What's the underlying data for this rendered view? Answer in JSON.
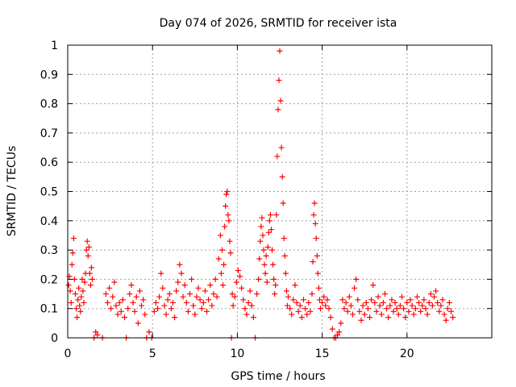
{
  "chart_data": {
    "type": "scatter",
    "title": "Day 074 of 2026, SRMTID for receiver ista",
    "xlabel": "GPS time / hours",
    "ylabel": "SRMTID / TECUs",
    "xlim": [
      0,
      25
    ],
    "ylim": [
      0,
      1
    ],
    "x_ticks": [
      0,
      5,
      10,
      15,
      20
    ],
    "x_tick_labels": [
      "0",
      "5",
      "10",
      "15",
      "20"
    ],
    "y_ticks": [
      0,
      0.1,
      0.2,
      0.3,
      0.4,
      0.5,
      0.6,
      0.7,
      0.8,
      0.9,
      1
    ],
    "y_tick_labels": [
      "0",
      "0.1",
      "0.2",
      "0.3",
      "0.4",
      "0.5",
      "0.6",
      "0.7",
      "0.8",
      "0.9",
      "1"
    ],
    "grid": true,
    "marker": "+",
    "series": [
      {
        "name": "SRMTID",
        "color": "#ff0000",
        "points": [
          [
            0.05,
            0.18
          ],
          [
            0.1,
            0.21
          ],
          [
            0.15,
            0.16
          ],
          [
            0.2,
            0.12
          ],
          [
            0.25,
            0.25
          ],
          [
            0.3,
            0.29
          ],
          [
            0.35,
            0.34
          ],
          [
            0.4,
            0.2
          ],
          [
            0.45,
            0.15
          ],
          [
            0.5,
            0.1
          ],
          [
            0.55,
            0.07
          ],
          [
            0.6,
            0.13
          ],
          [
            0.65,
            0.17
          ],
          [
            0.7,
            0.11
          ],
          [
            0.75,
            0.09
          ],
          [
            0.8,
            0.14
          ],
          [
            0.85,
            0.2
          ],
          [
            0.9,
            0.16
          ],
          [
            0.95,
            0.12
          ],
          [
            1.0,
            0.19
          ],
          [
            1.05,
            0.22
          ],
          [
            1.1,
            0.3
          ],
          [
            1.15,
            0.33
          ],
          [
            1.2,
            0.28
          ],
          [
            1.25,
            0.31
          ],
          [
            1.3,
            0.22
          ],
          [
            1.35,
            0.18
          ],
          [
            1.4,
            0.24
          ],
          [
            1.45,
            0.2
          ],
          [
            1.55,
            0.0
          ],
          [
            1.65,
            0.02
          ],
          [
            1.75,
            0.01
          ],
          [
            2.05,
            0.0
          ],
          [
            2.25,
            0.15
          ],
          [
            2.35,
            0.12
          ],
          [
            2.45,
            0.17
          ],
          [
            2.55,
            0.1
          ],
          [
            2.65,
            0.14
          ],
          [
            2.75,
            0.19
          ],
          [
            2.85,
            0.11
          ],
          [
            2.95,
            0.08
          ],
          [
            3.05,
            0.12
          ],
          [
            3.15,
            0.09
          ],
          [
            3.25,
            0.13
          ],
          [
            3.35,
            0.07
          ],
          [
            3.45,
            0.0
          ],
          [
            3.55,
            0.1
          ],
          [
            3.65,
            0.15
          ],
          [
            3.75,
            0.18
          ],
          [
            3.85,
            0.12
          ],
          [
            3.95,
            0.09
          ],
          [
            4.05,
            0.14
          ],
          [
            4.15,
            0.05
          ],
          [
            4.25,
            0.16
          ],
          [
            4.35,
            0.11
          ],
          [
            4.45,
            0.13
          ],
          [
            4.55,
            0.08
          ],
          [
            4.65,
            0.0
          ],
          [
            4.8,
            0.02
          ],
          [
            4.95,
            0.0
          ],
          [
            5.1,
            0.09
          ],
          [
            5.2,
            0.12
          ],
          [
            5.3,
            0.1
          ],
          [
            5.4,
            0.14
          ],
          [
            5.5,
            0.22
          ],
          [
            5.6,
            0.17
          ],
          [
            5.7,
            0.11
          ],
          [
            5.8,
            0.08
          ],
          [
            5.9,
            0.13
          ],
          [
            6.0,
            0.15
          ],
          [
            6.1,
            0.1
          ],
          [
            6.2,
            0.12
          ],
          [
            6.3,
            0.07
          ],
          [
            6.4,
            0.16
          ],
          [
            6.5,
            0.19
          ],
          [
            6.6,
            0.25
          ],
          [
            6.7,
            0.22
          ],
          [
            6.8,
            0.14
          ],
          [
            6.9,
            0.18
          ],
          [
            7.0,
            0.12
          ],
          [
            7.1,
            0.09
          ],
          [
            7.2,
            0.15
          ],
          [
            7.3,
            0.2
          ],
          [
            7.4,
            0.11
          ],
          [
            7.5,
            0.08
          ],
          [
            7.6,
            0.14
          ],
          [
            7.7,
            0.17
          ],
          [
            7.8,
            0.13
          ],
          [
            7.9,
            0.1
          ],
          [
            8.0,
            0.12
          ],
          [
            8.1,
            0.16
          ],
          [
            8.2,
            0.09
          ],
          [
            8.3,
            0.13
          ],
          [
            8.4,
            0.18
          ],
          [
            8.5,
            0.11
          ],
          [
            8.6,
            0.15
          ],
          [
            8.7,
            0.2
          ],
          [
            8.8,
            0.14
          ],
          [
            8.9,
            0.27
          ],
          [
            9.0,
            0.35
          ],
          [
            9.05,
            0.22
          ],
          [
            9.1,
            0.3
          ],
          [
            9.15,
            0.18
          ],
          [
            9.2,
            0.25
          ],
          [
            9.25,
            0.38
          ],
          [
            9.3,
            0.45
          ],
          [
            9.35,
            0.49
          ],
          [
            9.4,
            0.5
          ],
          [
            9.45,
            0.42
          ],
          [
            9.5,
            0.4
          ],
          [
            9.55,
            0.33
          ],
          [
            9.6,
            0.29
          ],
          [
            9.65,
            0.0
          ],
          [
            9.7,
            0.15
          ],
          [
            9.75,
            0.11
          ],
          [
            9.85,
            0.14
          ],
          [
            9.95,
            0.19
          ],
          [
            10.05,
            0.23
          ],
          [
            10.15,
            0.21
          ],
          [
            10.25,
            0.17
          ],
          [
            10.35,
            0.13
          ],
          [
            10.45,
            0.1
          ],
          [
            10.55,
            0.08
          ],
          [
            10.65,
            0.12
          ],
          [
            10.75,
            0.16
          ],
          [
            10.85,
            0.11
          ],
          [
            10.95,
            0.07
          ],
          [
            11.05,
            0.0
          ],
          [
            11.15,
            0.15
          ],
          [
            11.25,
            0.2
          ],
          [
            11.3,
            0.27
          ],
          [
            11.35,
            0.33
          ],
          [
            11.4,
            0.38
          ],
          [
            11.45,
            0.41
          ],
          [
            11.5,
            0.35
          ],
          [
            11.55,
            0.3
          ],
          [
            11.6,
            0.25
          ],
          [
            11.65,
            0.22
          ],
          [
            11.7,
            0.28
          ],
          [
            11.75,
            0.19
          ],
          [
            11.8,
            0.31
          ],
          [
            11.85,
            0.36
          ],
          [
            11.9,
            0.4
          ],
          [
            11.95,
            0.42
          ],
          [
            12.0,
            0.37
          ],
          [
            12.05,
            0.3
          ],
          [
            12.1,
            0.25
          ],
          [
            12.15,
            0.2
          ],
          [
            12.2,
            0.15
          ],
          [
            12.25,
            0.18
          ],
          [
            12.3,
            0.42
          ],
          [
            12.35,
            0.62
          ],
          [
            12.4,
            0.78
          ],
          [
            12.45,
            0.88
          ],
          [
            12.5,
            0.98
          ],
          [
            12.55,
            0.81
          ],
          [
            12.6,
            0.65
          ],
          [
            12.65,
            0.55
          ],
          [
            12.7,
            0.46
          ],
          [
            12.75,
            0.34
          ],
          [
            12.8,
            0.28
          ],
          [
            12.85,
            0.22
          ],
          [
            12.9,
            0.16
          ],
          [
            12.95,
            0.11
          ],
          [
            13.0,
            0.14
          ],
          [
            13.1,
            0.1
          ],
          [
            13.2,
            0.08
          ],
          [
            13.3,
            0.13
          ],
          [
            13.4,
            0.18
          ],
          [
            13.5,
            0.12
          ],
          [
            13.6,
            0.09
          ],
          [
            13.7,
            0.11
          ],
          [
            13.8,
            0.07
          ],
          [
            13.9,
            0.13
          ],
          [
            14.0,
            0.1
          ],
          [
            14.1,
            0.08
          ],
          [
            14.2,
            0.12
          ],
          [
            14.3,
            0.09
          ],
          [
            14.4,
            0.15
          ],
          [
            14.45,
            0.26
          ],
          [
            14.5,
            0.42
          ],
          [
            14.55,
            0.46
          ],
          [
            14.6,
            0.39
          ],
          [
            14.65,
            0.34
          ],
          [
            14.7,
            0.28
          ],
          [
            14.75,
            0.22
          ],
          [
            14.8,
            0.17
          ],
          [
            14.85,
            0.13
          ],
          [
            14.9,
            0.1
          ],
          [
            15.0,
            0.12
          ],
          [
            15.1,
            0.14
          ],
          [
            15.2,
            0.11
          ],
          [
            15.3,
            0.13
          ],
          [
            15.4,
            0.1
          ],
          [
            15.5,
            0.07
          ],
          [
            15.6,
            0.03
          ],
          [
            15.7,
            0.0
          ],
          [
            15.8,
            0.0
          ],
          [
            15.9,
            0.01
          ],
          [
            16.0,
            0.02
          ],
          [
            16.1,
            0.05
          ],
          [
            16.2,
            0.13
          ],
          [
            16.3,
            0.1
          ],
          [
            16.4,
            0.12
          ],
          [
            16.5,
            0.09
          ],
          [
            16.6,
            0.14
          ],
          [
            16.7,
            0.11
          ],
          [
            16.8,
            0.08
          ],
          [
            16.9,
            0.17
          ],
          [
            17.0,
            0.2
          ],
          [
            17.1,
            0.13
          ],
          [
            17.2,
            0.09
          ],
          [
            17.3,
            0.06
          ],
          [
            17.4,
            0.11
          ],
          [
            17.5,
            0.08
          ],
          [
            17.6,
            0.12
          ],
          [
            17.7,
            0.1
          ],
          [
            17.8,
            0.07
          ],
          [
            17.9,
            0.13
          ],
          [
            18.0,
            0.18
          ],
          [
            18.1,
            0.12
          ],
          [
            18.2,
            0.09
          ],
          [
            18.3,
            0.14
          ],
          [
            18.4,
            0.11
          ],
          [
            18.5,
            0.08
          ],
          [
            18.6,
            0.12
          ],
          [
            18.7,
            0.15
          ],
          [
            18.8,
            0.1
          ],
          [
            18.9,
            0.07
          ],
          [
            19.0,
            0.11
          ],
          [
            19.1,
            0.13
          ],
          [
            19.2,
            0.09
          ],
          [
            19.3,
            0.12
          ],
          [
            19.4,
            0.1
          ],
          [
            19.5,
            0.08
          ],
          [
            19.6,
            0.11
          ],
          [
            19.7,
            0.14
          ],
          [
            19.8,
            0.1
          ],
          [
            19.9,
            0.07
          ],
          [
            20.0,
            0.12
          ],
          [
            20.1,
            0.09
          ],
          [
            20.2,
            0.13
          ],
          [
            20.3,
            0.11
          ],
          [
            20.4,
            0.08
          ],
          [
            20.5,
            0.1
          ],
          [
            20.6,
            0.14
          ],
          [
            20.7,
            0.12
          ],
          [
            20.8,
            0.09
          ],
          [
            20.9,
            0.11
          ],
          [
            21.0,
            0.13
          ],
          [
            21.1,
            0.1
          ],
          [
            21.2,
            0.08
          ],
          [
            21.3,
            0.12
          ],
          [
            21.4,
            0.15
          ],
          [
            21.5,
            0.11
          ],
          [
            21.6,
            0.14
          ],
          [
            21.7,
            0.16
          ],
          [
            21.8,
            0.12
          ],
          [
            21.9,
            0.09
          ],
          [
            22.0,
            0.11
          ],
          [
            22.1,
            0.13
          ],
          [
            22.2,
            0.08
          ],
          [
            22.3,
            0.06
          ],
          [
            22.4,
            0.1
          ],
          [
            22.5,
            0.12
          ],
          [
            22.6,
            0.09
          ],
          [
            22.7,
            0.07
          ]
        ]
      }
    ]
  }
}
